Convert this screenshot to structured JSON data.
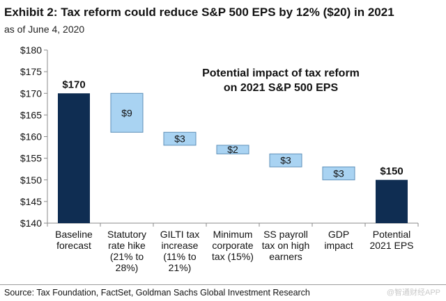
{
  "title": "Exhibit 2: Tax reform could reduce S&P 500 EPS by 12% ($20) in 2021",
  "subtitle": "as of June 4, 2020",
  "source": "Source: Tax Foundation, FactSet, Goldman Sachs Global Investment Research",
  "watermark": "@智通财经APP",
  "colors": {
    "total_bar": "#0f2d52",
    "step_bar": "#a9d3f2",
    "step_border": "#5e8fb8",
    "axis": "#888888"
  },
  "chart_data": {
    "type": "bar",
    "subtype": "waterfall",
    "annotation": [
      "Potential impact of tax reform",
      "on 2021 S&P 500 EPS"
    ],
    "ylim": [
      140,
      180
    ],
    "yticks": [
      140,
      145,
      150,
      155,
      160,
      165,
      170,
      175,
      180
    ],
    "ytick_labels": [
      "$140",
      "$145",
      "$150",
      "$155",
      "$160",
      "$165",
      "$170",
      "$175",
      "$180"
    ],
    "grid": false,
    "categories": [
      [
        "Baseline",
        "forecast"
      ],
      [
        "Statutory",
        "rate hike",
        "(21% to",
        "28%)"
      ],
      [
        "GILTI tax",
        "increase",
        "(11% to",
        "21%)"
      ],
      [
        "Minimum",
        "corporate",
        "tax (15%)"
      ],
      [
        "SS payroll",
        "tax on high",
        "earners"
      ],
      [
        "GDP",
        "impact"
      ],
      [
        "Potential",
        "2021 EPS"
      ]
    ],
    "bars": [
      {
        "kind": "total",
        "start": 140,
        "end": 170,
        "label": "$170"
      },
      {
        "kind": "step",
        "start": 170,
        "end": 161,
        "label": "$9"
      },
      {
        "kind": "step",
        "start": 161,
        "end": 158,
        "label": "$3"
      },
      {
        "kind": "step",
        "start": 158,
        "end": 156,
        "label": "$2"
      },
      {
        "kind": "step",
        "start": 156,
        "end": 153,
        "label": "$3"
      },
      {
        "kind": "step",
        "start": 153,
        "end": 150,
        "label": "$3"
      },
      {
        "kind": "total",
        "start": 140,
        "end": 150,
        "label": "$150"
      }
    ]
  }
}
